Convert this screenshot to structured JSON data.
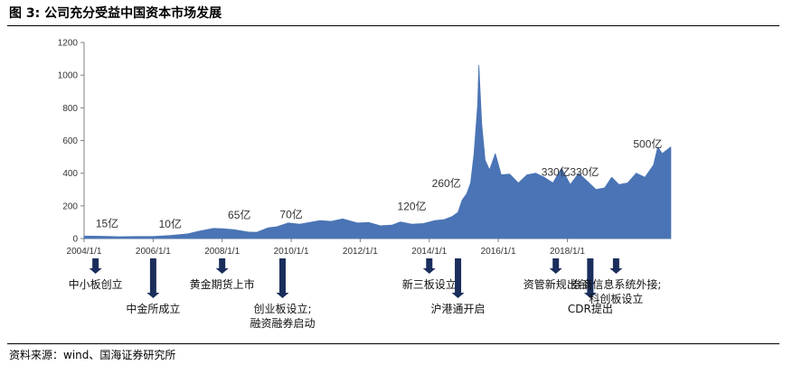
{
  "figure": {
    "title": "图 3:  公司充分受益中国资本市场发展",
    "source": "资料来源：wind、国海证券研究所"
  },
  "colors": {
    "area": "#4A74B5",
    "arrow": "#1A2E5C",
    "axis": "#7F7F7F"
  },
  "chart_data": {
    "type": "area",
    "title": "",
    "xlabel": "",
    "ylabel": "",
    "ylim": [
      0,
      1200
    ],
    "xlim": [
      "2004/1/1",
      "2021/1/1"
    ],
    "y_ticks": [
      0,
      200,
      400,
      600,
      800,
      1000,
      1200
    ],
    "x_ticks": [
      "2004/1/1",
      "2006/1/1",
      "2008/1/1",
      "2010/1/1",
      "2012/1/1",
      "2014/1/1",
      "2016/1/1",
      "2018/1/1"
    ],
    "grid": false,
    "legend": "none",
    "series": [
      {
        "x": [
          "2004/1/1",
          "2004/7/1",
          "2005/1/1",
          "2005/7/1",
          "2006/1/1",
          "2006/7/1",
          "2007/1/1",
          "2007/5/1",
          "2007/10/1",
          "2008/1/1",
          "2008/5/1",
          "2008/10/1",
          "2009/1/1",
          "2009/5/1",
          "2009/8/1",
          "2009/12/1",
          "2010/4/1",
          "2010/8/1",
          "2010/11/1",
          "2011/3/1",
          "2011/7/1",
          "2011/12/1",
          "2012/4/1",
          "2012/8/1",
          "2012/12/1",
          "2013/3/1",
          "2013/7/1",
          "2013/11/1",
          "2014/3/1",
          "2014/6/1",
          "2014/9/1",
          "2014/11/1",
          "2014/12/15",
          "2015/2/1",
          "2015/3/15",
          "2015/4/20",
          "2015/5/28",
          "2015/6/10",
          "2015/7/10",
          "2015/8/15",
          "2015/10/1",
          "2015/12/1",
          "2016/2/1",
          "2016/5/1",
          "2016/8/1",
          "2016/11/1",
          "2017/2/1",
          "2017/5/1",
          "2017/8/1",
          "2017/11/1",
          "2018/2/1",
          "2018/5/1",
          "2018/8/1",
          "2018/11/1",
          "2019/2/1",
          "2019/4/15",
          "2019/7/1",
          "2019/10/1",
          "2020/1/1",
          "2020/4/1",
          "2020/7/1",
          "2020/8/15",
          "2020/10/1",
          "2020/12/31"
        ],
        "values": [
          15,
          14,
          11,
          12,
          12,
          18,
          28,
          45,
          62,
          60,
          55,
          40,
          38,
          65,
          72,
          95,
          88,
          100,
          110,
          105,
          120,
          95,
          98,
          78,
          82,
          102,
          88,
          92,
          110,
          115,
          135,
          160,
          235,
          275,
          340,
          520,
          820,
          1060,
          700,
          480,
          420,
          520,
          390,
          395,
          340,
          390,
          400,
          375,
          340,
          430,
          330,
          400,
          350,
          300,
          310,
          375,
          330,
          340,
          400,
          375,
          450,
          560,
          520,
          560
        ]
      }
    ],
    "annotations": [
      {
        "date": "2004/9/1",
        "value": 15,
        "label": "15亿"
      },
      {
        "date": "2006/7/1",
        "value": 10,
        "label": "10亿"
      },
      {
        "date": "2008/7/1",
        "value": 65,
        "label": "65亿"
      },
      {
        "date": "2010/1/1",
        "value": 70,
        "label": "70亿"
      },
      {
        "date": "2013/7/1",
        "value": 120,
        "label": "120亿"
      },
      {
        "date": "2014/7/1",
        "value": 260,
        "label": "260亿"
      },
      {
        "date": "2017/9/1",
        "value": 330,
        "label": "330亿"
      },
      {
        "date": "2018/7/1",
        "value": 330,
        "label": "330亿"
      },
      {
        "date": "2020/5/1",
        "value": 500,
        "label": "500亿"
      }
    ],
    "events": [
      {
        "date": "2004/5/1",
        "lines": [
          "中小板创立"
        ],
        "arrow": "short"
      },
      {
        "date": "2006/1/1",
        "lines": [
          "中金所成立"
        ],
        "arrow": "long"
      },
      {
        "date": "2008/1/1",
        "lines": [
          "黄金期货上市"
        ],
        "arrow": "short"
      },
      {
        "date": "2009/10/1",
        "lines": [
          "创业板设立;",
          "融资融券启动"
        ],
        "arrow": "long"
      },
      {
        "date": "2014/1/1",
        "lines": [
          "新三板设立"
        ],
        "arrow": "short"
      },
      {
        "date": "2014/11/1",
        "lines": [
          "沪港通开启"
        ],
        "arrow": "long"
      },
      {
        "date": "2017/9/1",
        "lines": [
          "资管新规出台"
        ],
        "arrow": "short"
      },
      {
        "date": "2018/9/1",
        "lines": [
          "CDR提出"
        ],
        "arrow": "long"
      },
      {
        "date": "2019/6/1",
        "lines": [
          "券商信息系统外接;",
          "科创板设立"
        ],
        "arrow": "short"
      }
    ]
  }
}
